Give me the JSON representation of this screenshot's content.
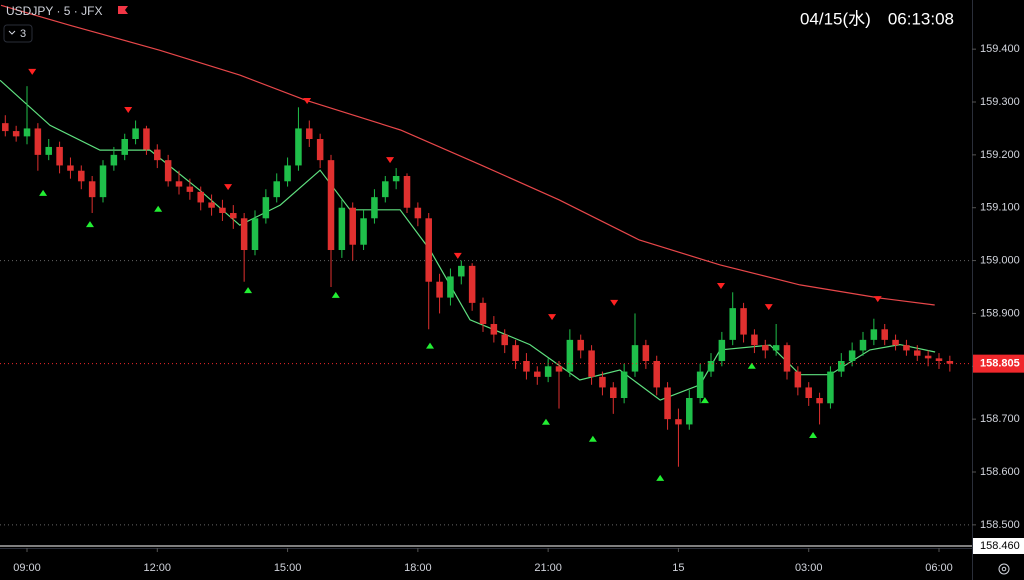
{
  "chart_data": {
    "type": "candlestick",
    "title": "USDJPY · 5 · JFX",
    "indicator_count": "3",
    "clock": "04/15(水)　06:13:08",
    "x": [
      8.5,
      8.75,
      9,
      9.25,
      9.5,
      9.75,
      10,
      10.25,
      10.5,
      10.75,
      11,
      11.25,
      11.5,
      11.75,
      12,
      12.25,
      12.5,
      12.75,
      13,
      13.25,
      13.5,
      13.75,
      14,
      14.25,
      14.5,
      14.75,
      15,
      15.25,
      15.5,
      15.75,
      16,
      16.25,
      16.5,
      16.75,
      17,
      17.25,
      17.5,
      17.75,
      18,
      18.25,
      18.5,
      18.75,
      19,
      19.25,
      19.5,
      19.75,
      20,
      20.25,
      20.5,
      20.75,
      21,
      21.25,
      21.5,
      21.75,
      22,
      22.25,
      22.5,
      22.75,
      23,
      23.25,
      23.5,
      23.75,
      24,
      24.25,
      24.5,
      24.75,
      25,
      25.25,
      25.5,
      25.75,
      26,
      26.25,
      26.5,
      26.75,
      27,
      27.25,
      27.5,
      27.75,
      28,
      28.25,
      28.5,
      28.75,
      29,
      29.25,
      29.5,
      29.75,
      30,
      30.25
    ],
    "open": [
      159.26,
      159.245,
      159.235,
      159.25,
      159.2,
      159.215,
      159.18,
      159.17,
      159.15,
      159.12,
      159.18,
      159.2,
      159.23,
      159.25,
      159.21,
      159.19,
      159.15,
      159.14,
      159.13,
      159.11,
      159.1,
      159.09,
      159.08,
      159.02,
      159.08,
      159.12,
      159.15,
      159.18,
      159.25,
      159.23,
      159.19,
      159.02,
      159.1,
      159.03,
      159.08,
      159.12,
      159.15,
      159.16,
      159.1,
      159.08,
      158.96,
      158.93,
      158.97,
      158.99,
      158.92,
      158.88,
      158.86,
      158.84,
      158.81,
      158.79,
      158.78,
      158.8,
      158.79,
      158.85,
      158.83,
      158.78,
      158.76,
      158.74,
      158.79,
      158.84,
      158.81,
      158.76,
      158.7,
      158.69,
      158.74,
      158.79,
      158.81,
      158.85,
      158.91,
      158.86,
      158.84,
      158.83,
      158.84,
      158.79,
      158.76,
      158.74,
      158.73,
      158.79,
      158.81,
      158.83,
      158.85,
      158.87,
      158.85,
      158.84,
      158.83,
      158.82,
      158.815,
      158.81
    ],
    "high": [
      159.275,
      159.255,
      159.33,
      159.26,
      159.23,
      159.225,
      159.195,
      159.18,
      159.16,
      159.19,
      159.215,
      159.24,
      159.265,
      159.255,
      159.22,
      159.2,
      159.17,
      159.155,
      159.14,
      159.125,
      159.115,
      159.105,
      159.09,
      159.095,
      159.135,
      159.165,
      159.195,
      159.29,
      159.265,
      159.24,
      159.2,
      159.115,
      159.11,
      159.095,
      159.135,
      159.16,
      159.175,
      159.165,
      159.11,
      159.09,
      158.975,
      158.985,
      159.0,
      158.995,
      158.93,
      158.895,
      158.87,
      158.85,
      158.825,
      158.8,
      158.815,
      158.81,
      158.87,
      158.86,
      158.84,
      158.79,
      158.77,
      158.805,
      158.9,
      158.85,
      158.82,
      158.77,
      158.72,
      158.755,
      158.805,
      158.825,
      158.865,
      158.94,
      158.92,
      158.87,
      158.85,
      158.88,
      158.845,
      158.8,
      158.77,
      158.75,
      158.8,
      158.825,
      158.845,
      158.865,
      158.89,
      158.88,
      158.86,
      158.85,
      158.84,
      158.83,
      158.825,
      158.82
    ],
    "low": [
      159.235,
      159.225,
      159.22,
      159.17,
      159.19,
      159.165,
      159.155,
      159.135,
      159.09,
      159.11,
      159.17,
      159.19,
      159.22,
      159.2,
      159.175,
      159.14,
      159.125,
      159.115,
      159.095,
      159.085,
      159.075,
      159.06,
      158.96,
      159.01,
      159.07,
      159.11,
      159.14,
      159.17,
      159.215,
      159.175,
      158.95,
      159.005,
      159.0,
      159.02,
      159.07,
      159.11,
      159.135,
      159.09,
      159.065,
      158.87,
      158.9,
      158.915,
      158.955,
      158.905,
      158.865,
      158.845,
      158.825,
      158.795,
      158.775,
      158.765,
      158.77,
      158.72,
      158.78,
      158.815,
      158.765,
      158.745,
      158.71,
      158.73,
      158.78,
      158.795,
      158.745,
      158.68,
      158.61,
      158.68,
      158.73,
      158.78,
      158.8,
      158.84,
      158.845,
      158.825,
      158.815,
      158.82,
      158.775,
      158.745,
      158.725,
      158.69,
      158.72,
      158.78,
      158.8,
      158.82,
      158.84,
      158.84,
      158.83,
      158.82,
      158.81,
      158.8,
      158.795,
      158.79
    ],
    "close": [
      159.245,
      159.235,
      159.25,
      159.2,
      159.215,
      159.18,
      159.17,
      159.15,
      159.12,
      159.18,
      159.2,
      159.23,
      159.25,
      159.21,
      159.19,
      159.15,
      159.14,
      159.13,
      159.11,
      159.1,
      159.09,
      159.08,
      159.02,
      159.08,
      159.12,
      159.15,
      159.18,
      159.25,
      159.23,
      159.19,
      159.02,
      159.1,
      159.03,
      159.08,
      159.12,
      159.15,
      159.16,
      159.1,
      159.08,
      158.96,
      158.93,
      158.97,
      158.99,
      158.92,
      158.88,
      158.86,
      158.84,
      158.81,
      158.79,
      158.78,
      158.8,
      158.79,
      158.85,
      158.83,
      158.78,
      158.76,
      158.74,
      158.79,
      158.84,
      158.81,
      158.76,
      158.7,
      158.69,
      158.74,
      158.79,
      158.81,
      158.85,
      158.91,
      158.86,
      158.84,
      158.83,
      158.84,
      158.79,
      158.76,
      158.74,
      158.73,
      158.79,
      158.81,
      158.83,
      158.85,
      158.87,
      158.85,
      158.84,
      158.83,
      158.82,
      158.815,
      158.81,
      158.805
    ],
    "up_color": "#1fbf4a",
    "down_color": "#e0302f",
    "lines": [
      {
        "color": "#e8474a",
        "x": [
          8.4,
          10,
          12.05,
          13.9,
          15.4,
          17.6,
          19.45,
          21.25,
          23.1,
          24.95,
          26.8,
          28.65,
          29.9
        ],
        "values": [
          159.483,
          159.445,
          159.398,
          159.351,
          159.304,
          159.247,
          159.181,
          159.115,
          159.039,
          158.992,
          158.954,
          158.929,
          158.916
        ]
      },
      {
        "color": "#5fe07f",
        "x": [
          8.38,
          9.53,
          10.68,
          11.83,
          12.98,
          13.9,
          14.83,
          15.75,
          16.44,
          17.59,
          18.28,
          19.2,
          20.58,
          21.73,
          22.65,
          23.58,
          24.5,
          24.96,
          26.11,
          26.8,
          27.49,
          28.41,
          29.1,
          29.91
        ],
        "values": [
          159.341,
          159.256,
          159.209,
          159.209,
          159.133,
          159.067,
          159.105,
          159.171,
          159.096,
          159.096,
          159.02,
          158.888,
          158.841,
          158.774,
          158.793,
          158.736,
          158.765,
          158.831,
          158.84,
          158.784,
          158.784,
          158.831,
          158.841,
          158.827
        ]
      }
    ],
    "sell_signals": {
      "color": "#ff2222",
      "x": [
        9.12,
        11.33,
        13.63,
        15.45,
        17.36,
        18.92,
        21.09,
        22.52,
        24.98,
        26.08,
        28.59
      ],
      "values": [
        159.357,
        159.285,
        159.139,
        159.302,
        159.19,
        159.009,
        158.893,
        158.92,
        158.952,
        158.912,
        158.927
      ]
    },
    "buy_signals": {
      "color": "#22ee33",
      "x": [
        9.37,
        10.45,
        12.02,
        14.09,
        16.11,
        18.28,
        20.95,
        22.03,
        23.58,
        24.61,
        25.69,
        27.1
      ],
      "values": [
        159.128,
        159.069,
        159.098,
        158.944,
        158.935,
        158.839,
        158.695,
        158.663,
        158.589,
        158.736,
        158.801,
        158.67
      ]
    },
    "levels": [
      159.0,
      158.5
    ],
    "last_price": {
      "value": 158.805,
      "label": "158.805",
      "color": "#f0282c"
    },
    "marker_price": {
      "value": 158.46,
      "label": "158.460"
    },
    "xlim": [
      8.378,
      30.76
    ],
    "ylim": [
      158.46,
      159.493
    ],
    "xticks": [
      {
        "value": 9,
        "label": "09:00"
      },
      {
        "value": 12,
        "label": "12:00"
      },
      {
        "value": 15,
        "label": "15:00"
      },
      {
        "value": 18,
        "label": "18:00"
      },
      {
        "value": 21,
        "label": "21:00"
      },
      {
        "value": 24,
        "label": "15"
      },
      {
        "value": 27,
        "label": "03:00"
      },
      {
        "value": 30,
        "label": "06:00"
      }
    ],
    "yticks": [
      {
        "value": 159.4,
        "label": "159.400"
      },
      {
        "value": 159.3,
        "label": "159.300"
      },
      {
        "value": 159.2,
        "label": "159.200"
      },
      {
        "value": 159.1,
        "label": "159.100"
      },
      {
        "value": 159.0,
        "label": "159.000"
      },
      {
        "value": 158.9,
        "label": "158.900"
      },
      {
        "value": 158.8,
        "label": "158.800"
      },
      {
        "value": 158.7,
        "label": "158.700"
      },
      {
        "value": 158.6,
        "label": "158.600"
      },
      {
        "value": 158.5,
        "label": "158.500"
      }
    ]
  }
}
